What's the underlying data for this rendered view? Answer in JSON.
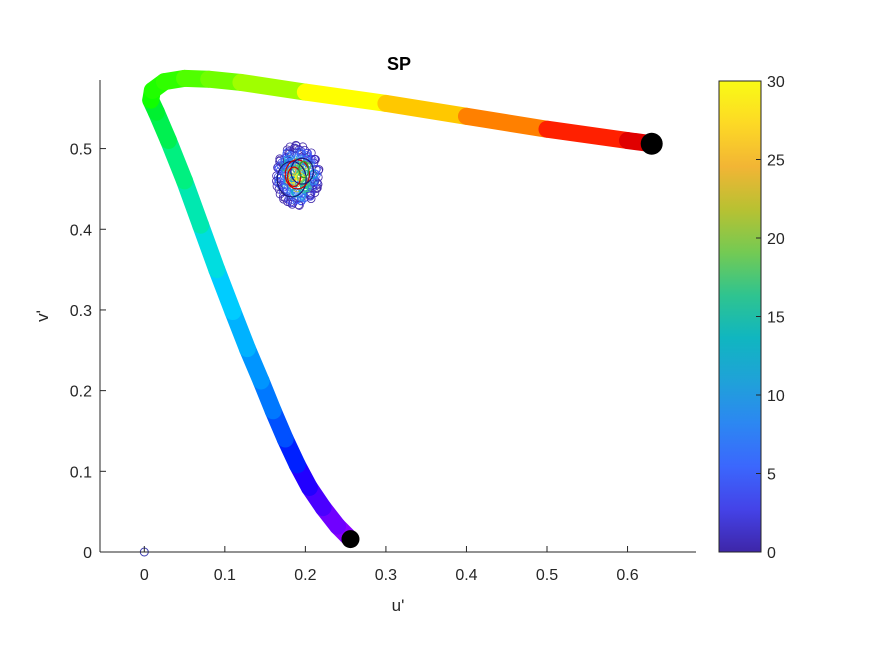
{
  "chart_data": {
    "type": "scatter",
    "title": "SP",
    "xlabel": "u'",
    "ylabel": "v'",
    "xlim": [
      -0.055,
      0.685
    ],
    "ylim": [
      0,
      0.585
    ],
    "xticks": [
      0,
      0.1,
      0.2,
      0.3,
      0.4,
      0.5,
      0.6
    ],
    "xtick_labels": [
      "0",
      "0.1",
      "0.2",
      "0.3",
      "0.4",
      "0.5",
      "0.6"
    ],
    "yticks": [
      0,
      0.1,
      0.2,
      0.3,
      0.4,
      0.5
    ],
    "ytick_labels": [
      "0",
      "0.1",
      "0.2",
      "0.3",
      "0.4",
      "0.5"
    ],
    "grid": false,
    "spectral_locus": {
      "points": [
        [
          0.256,
          0.016
        ],
        [
          0.24,
          0.032
        ],
        [
          0.222,
          0.055
        ],
        [
          0.205,
          0.08
        ],
        [
          0.19,
          0.108
        ],
        [
          0.175,
          0.14
        ],
        [
          0.16,
          0.175
        ],
        [
          0.145,
          0.212
        ],
        [
          0.128,
          0.252
        ],
        [
          0.11,
          0.298
        ],
        [
          0.09,
          0.35
        ],
        [
          0.07,
          0.405
        ],
        [
          0.05,
          0.46
        ],
        [
          0.03,
          0.51
        ],
        [
          0.015,
          0.545
        ],
        [
          0.008,
          0.56
        ],
        [
          0.01,
          0.572
        ],
        [
          0.025,
          0.583
        ],
        [
          0.05,
          0.587
        ],
        [
          0.08,
          0.586
        ],
        [
          0.12,
          0.582
        ],
        [
          0.2,
          0.57
        ],
        [
          0.3,
          0.556
        ],
        [
          0.4,
          0.54
        ],
        [
          0.5,
          0.524
        ],
        [
          0.6,
          0.51
        ],
        [
          0.63,
          0.506
        ]
      ],
      "colors": [
        "#8a00ff",
        "#7000ff",
        "#4a00ff",
        "#2200ff",
        "#0020ff",
        "#0050ff",
        "#0078ff",
        "#0095ff",
        "#00b2ff",
        "#00ccff",
        "#00dde0",
        "#00e8b0",
        "#00f080",
        "#00f050",
        "#00f030",
        "#10ff00",
        "#20ff00",
        "#30ff00",
        "#50ff00",
        "#70ff00",
        "#a0ff00",
        "#ffff00",
        "#ffc800",
        "#ff8000",
        "#ff2000",
        "#e00000",
        "#000000"
      ],
      "end_markers": [
        [
          0.256,
          0.016
        ],
        [
          0.63,
          0.506
        ]
      ]
    },
    "origin_marker": [
      0,
      0
    ],
    "scatter_cluster": {
      "center": [
        0.19,
        0.467
      ],
      "spread": [
        0.028,
        0.038
      ],
      "count": 220
    },
    "ellipses": [
      {
        "center": [
          0.183,
          0.462
        ],
        "rx": 0.018,
        "ry": 0.022,
        "color": "#1a1a7a"
      },
      {
        "center": [
          0.19,
          0.468
        ],
        "rx": 0.015,
        "ry": 0.018,
        "color": "#cc0000"
      },
      {
        "center": [
          0.196,
          0.472
        ],
        "rx": 0.014,
        "ry": 0.016,
        "color": "#1a1a7a"
      },
      {
        "center": [
          0.186,
          0.465
        ],
        "rx": 0.008,
        "ry": 0.012,
        "color": "#cc0000"
      },
      {
        "center": [
          0.198,
          0.474
        ],
        "rx": 0.006,
        "ry": 0.01,
        "color": "#2ca02c"
      }
    ],
    "colorbar": {
      "range": [
        0,
        30
      ],
      "ticks": [
        0,
        5,
        10,
        15,
        20,
        25,
        30
      ],
      "tick_labels": [
        "0",
        "5",
        "10",
        "15",
        "20",
        "25",
        "30"
      ],
      "colors": [
        "#3e26a8",
        "#4443e8",
        "#3b67fd",
        "#2c87f2",
        "#1fa2d8",
        "#10b6c0",
        "#2fc48f",
        "#74ca53",
        "#b8c132",
        "#f2b535",
        "#fdd925",
        "#f9fb15"
      ]
    }
  }
}
